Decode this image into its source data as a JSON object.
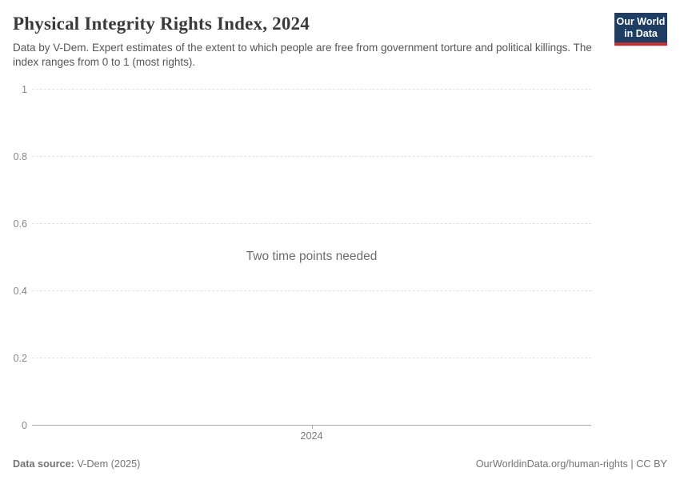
{
  "header": {
    "title": "Physical Integrity Rights Index, 2024",
    "subtitle": "Data by V-Dem. Expert estimates of the extent to which people are free from government torture and political killings. The index ranges from 0 to 1 (most rights).",
    "logo": {
      "line1": "Our World",
      "line2": "in Data",
      "bg_color": "#1d3d63",
      "accent_color": "#cf2a27"
    }
  },
  "chart_data": {
    "type": "line",
    "title": "Physical Integrity Rights Index, 2024",
    "series": [],
    "empty_message": "Two time points needed",
    "xlabel": "",
    "ylabel": "",
    "ylim": [
      0,
      1
    ],
    "grid": "horizontal-dashed",
    "yticks": [
      {
        "value": 1,
        "label": "1"
      },
      {
        "value": 0.8,
        "label": "0.8"
      },
      {
        "value": 0.6,
        "label": "0.6"
      },
      {
        "value": 0.4,
        "label": "0.4"
      },
      {
        "value": 0.2,
        "label": "0.2"
      },
      {
        "value": 0,
        "label": "0"
      }
    ],
    "xticks": [
      {
        "pos": 0.5,
        "label": "2024"
      }
    ]
  },
  "footer": {
    "datasource_label": "Data source:",
    "datasource_value": " V-Dem (2025)",
    "link": "OurWorldinData.org/human-rights",
    "separator": " | ",
    "license": "CC BY"
  }
}
